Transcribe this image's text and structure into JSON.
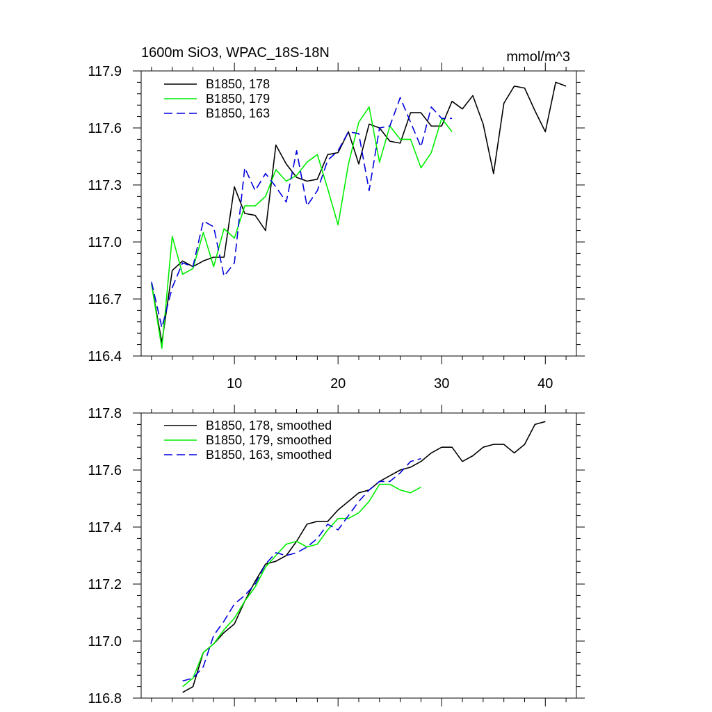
{
  "colors": {
    "s178": "#000000",
    "s179": "#00ee00",
    "s163": "#0000dd"
  },
  "chart_data": [
    {
      "type": "line",
      "title": "1600m SiO3, WPAC_18S-18N",
      "units": "mmol/m^3",
      "xlabel": "",
      "ylabel": "",
      "xlim": [
        1,
        43
      ],
      "ylim": [
        116.4,
        117.9
      ],
      "yticks": [
        "116.4",
        "116.7",
        "117.0",
        "117.3",
        "117.6",
        "117.9"
      ],
      "xticks": [
        "10",
        "20",
        "30",
        "40"
      ],
      "grid": false,
      "legend_position": "top-left",
      "series": [
        {
          "name": "B1850, 178",
          "color": "#000000",
          "dash": "solid",
          "x": [
            2,
            3,
            4,
            5,
            6,
            7,
            8,
            9,
            10,
            11,
            12,
            13,
            14,
            15,
            16,
            17,
            18,
            19,
            20,
            21,
            22,
            23,
            24,
            25,
            26,
            27,
            28,
            29,
            30,
            31,
            32,
            33,
            34,
            35,
            36,
            37,
            38,
            39,
            40,
            41,
            42
          ],
          "y": [
            116.78,
            116.47,
            116.85,
            116.9,
            116.87,
            116.9,
            116.92,
            116.92,
            117.29,
            117.15,
            117.14,
            117.06,
            117.51,
            117.41,
            117.34,
            117.32,
            117.33,
            117.46,
            117.47,
            117.58,
            117.41,
            117.62,
            117.6,
            117.53,
            117.52,
            117.68,
            117.68,
            117.61,
            117.61,
            117.74,
            117.7,
            117.77,
            117.62,
            117.36,
            117.73,
            117.82,
            117.81,
            117.69,
            117.58,
            117.84,
            117.82
          ]
        },
        {
          "name": "B1850, 179",
          "color": "#00ee00",
          "dash": "solid",
          "x": [
            2,
            3,
            4,
            5,
            6,
            7,
            8,
            9,
            10,
            11,
            12,
            13,
            14,
            15,
            16,
            17,
            18,
            19,
            20,
            21,
            22,
            23,
            24,
            25,
            26,
            27,
            28,
            29,
            30,
            31
          ],
          "y": [
            116.78,
            116.44,
            117.03,
            116.83,
            116.86,
            117.05,
            116.87,
            117.07,
            117.02,
            117.19,
            117.19,
            117.24,
            117.38,
            117.32,
            117.35,
            117.42,
            117.46,
            117.28,
            117.09,
            117.41,
            117.63,
            117.71,
            117.42,
            117.61,
            117.54,
            117.54,
            117.39,
            117.47,
            117.65,
            117.58
          ]
        },
        {
          "name": "B1850, 163",
          "color": "#0000dd",
          "dash": "dashed",
          "x": [
            2,
            3,
            4,
            5,
            6,
            7,
            8,
            9,
            10,
            11,
            12,
            13,
            14,
            15,
            16,
            17,
            18,
            19,
            20,
            21,
            22,
            23,
            24,
            25,
            26,
            27,
            28,
            29,
            30,
            31
          ],
          "y": [
            116.79,
            116.55,
            116.76,
            116.89,
            116.87,
            117.11,
            117.08,
            116.82,
            116.89,
            117.39,
            117.27,
            117.36,
            117.29,
            117.21,
            117.48,
            117.19,
            117.27,
            117.43,
            117.48,
            117.58,
            117.57,
            117.27,
            117.6,
            117.61,
            117.76,
            117.63,
            117.5,
            117.71,
            117.65,
            117.65
          ]
        }
      ]
    },
    {
      "type": "line",
      "title": "",
      "xlabel": "",
      "ylabel": "",
      "xlim": [
        1,
        43
      ],
      "ylim": [
        116.8,
        117.8
      ],
      "yticks": [
        "116.8",
        "117.0",
        "117.2",
        "117.4",
        "117.6",
        "117.8"
      ],
      "grid": false,
      "legend_position": "top-left",
      "series": [
        {
          "name": "B1850, 178, smoothed",
          "color": "#000000",
          "dash": "solid",
          "x": [
            5,
            6,
            7,
            8,
            9,
            10,
            11,
            12,
            13,
            14,
            15,
            16,
            17,
            18,
            19,
            20,
            21,
            22,
            23,
            24,
            25,
            26,
            27,
            28,
            29,
            30,
            31,
            32,
            33,
            34,
            35,
            36,
            37,
            38,
            39,
            40
          ],
          "y": [
            116.82,
            116.84,
            116.96,
            116.99,
            117.03,
            117.06,
            117.14,
            117.21,
            117.27,
            117.28,
            117.3,
            117.35,
            117.41,
            117.42,
            117.42,
            117.46,
            117.49,
            117.52,
            117.53,
            117.56,
            117.58,
            117.6,
            117.61,
            117.63,
            117.66,
            117.68,
            117.68,
            117.63,
            117.65,
            117.68,
            117.69,
            117.69,
            117.66,
            117.69,
            117.76,
            117.77
          ]
        },
        {
          "name": "B1850, 179, smoothed",
          "color": "#00ee00",
          "dash": "solid",
          "x": [
            5,
            6,
            7,
            8,
            9,
            10,
            11,
            12,
            13,
            14,
            15,
            16,
            17,
            18,
            19,
            20,
            21,
            22,
            23,
            24,
            25,
            26,
            27,
            28
          ],
          "y": [
            116.84,
            116.87,
            116.96,
            116.99,
            117.04,
            117.08,
            117.14,
            117.19,
            117.26,
            117.3,
            117.34,
            117.35,
            117.33,
            117.34,
            117.39,
            117.43,
            117.43,
            117.45,
            117.49,
            117.55,
            117.55,
            117.53,
            117.52,
            117.54
          ]
        },
        {
          "name": "B1850, 163, smoothed",
          "color": "#0000dd",
          "dash": "dashed",
          "x": [
            5,
            6,
            7,
            8,
            9,
            10,
            11,
            12,
            13,
            14,
            15,
            16,
            17,
            18,
            19,
            20,
            21,
            22,
            23,
            24,
            25,
            26,
            27,
            28
          ],
          "y": [
            116.86,
            116.87,
            116.91,
            117.02,
            117.07,
            117.13,
            117.16,
            117.2,
            117.27,
            117.31,
            117.3,
            117.31,
            117.33,
            117.36,
            117.41,
            117.39,
            117.44,
            117.49,
            117.53,
            117.56,
            117.56,
            117.59,
            117.63,
            117.64
          ]
        }
      ]
    }
  ]
}
